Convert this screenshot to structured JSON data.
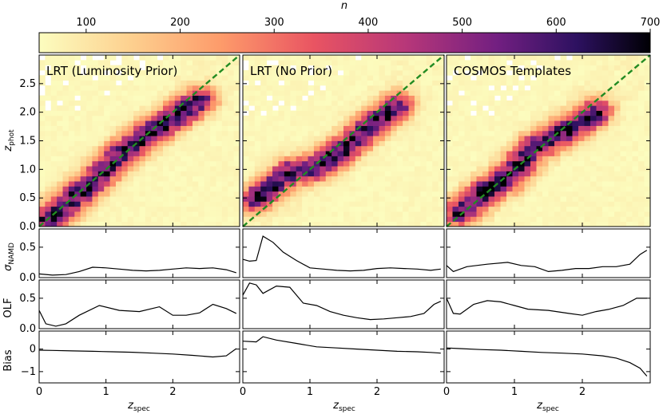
{
  "chart_data": {
    "type": "heatmap",
    "colorbar": {
      "label": "n",
      "min": 50,
      "max": 700,
      "ticks": [
        100,
        200,
        300,
        400,
        500,
        600,
        700
      ],
      "colormap": "magma_r",
      "orientation": "horizontal",
      "placement": "top"
    },
    "xlabel": "z_spec",
    "xlim": [
      0,
      3
    ],
    "xticks": [
      0,
      1,
      2
    ],
    "heatmap_ylabel": "z_phot",
    "heatmap_ylim": [
      0,
      3
    ],
    "heatmap_yticks": [
      0.0,
      0.5,
      1.0,
      1.5,
      2.0,
      2.5
    ],
    "one_to_one_line": {
      "color": "#228b22",
      "style": "dashed"
    },
    "panels": [
      {
        "title": "LRT (Luminosity Prior)",
        "density_ridge": [
          [
            0.1,
            0.1
          ],
          [
            0.4,
            0.38
          ],
          [
            0.8,
            0.78
          ],
          [
            1.2,
            1.25
          ],
          [
            1.6,
            1.6
          ],
          [
            2.0,
            1.9
          ],
          [
            2.4,
            2.2
          ]
        ],
        "sigma_nmad": {
          "x": [
            0.0,
            0.2,
            0.4,
            0.6,
            0.8,
            1.0,
            1.2,
            1.4,
            1.6,
            1.8,
            2.0,
            2.2,
            2.4,
            2.6,
            2.8,
            2.95
          ],
          "y": [
            0.06,
            0.04,
            0.05,
            0.1,
            0.17,
            0.16,
            0.14,
            0.12,
            0.11,
            0.12,
            0.14,
            0.16,
            0.15,
            0.16,
            0.13,
            0.08
          ]
        },
        "olf": {
          "x": [
            0.0,
            0.1,
            0.25,
            0.4,
            0.6,
            0.9,
            1.2,
            1.5,
            1.8,
            2.0,
            2.2,
            2.4,
            2.6,
            2.8,
            2.95
          ],
          "y": [
            0.3,
            0.08,
            0.04,
            0.08,
            0.22,
            0.38,
            0.3,
            0.28,
            0.36,
            0.22,
            0.22,
            0.26,
            0.4,
            0.33,
            0.25
          ]
        },
        "bias": {
          "x": [
            0.0,
            0.2,
            0.5,
            0.8,
            1.1,
            1.4,
            1.7,
            2.0,
            2.3,
            2.6,
            2.8,
            2.95
          ],
          "y": [
            -0.05,
            -0.06,
            -0.08,
            -0.1,
            -0.12,
            -0.14,
            -0.18,
            -0.22,
            -0.28,
            -0.35,
            -0.3,
            0.02
          ]
        }
      },
      {
        "title": "LRT (No Prior)",
        "density_ridge": [
          [
            0.2,
            0.5
          ],
          [
            0.7,
            0.95
          ],
          [
            1.1,
            1.05
          ],
          [
            1.5,
            1.35
          ],
          [
            1.9,
            1.75
          ],
          [
            2.3,
            2.1
          ]
        ],
        "sigma_nmad": {
          "x": [
            0.0,
            0.1,
            0.2,
            0.3,
            0.45,
            0.6,
            0.8,
            1.0,
            1.2,
            1.4,
            1.6,
            1.8,
            2.0,
            2.2,
            2.4,
            2.6,
            2.8,
            2.95
          ],
          "y": [
            0.3,
            0.27,
            0.28,
            0.68,
            0.58,
            0.42,
            0.28,
            0.16,
            0.14,
            0.12,
            0.11,
            0.12,
            0.15,
            0.16,
            0.15,
            0.14,
            0.12,
            0.14
          ]
        },
        "olf": {
          "x": [
            0.0,
            0.1,
            0.2,
            0.3,
            0.5,
            0.7,
            0.9,
            1.1,
            1.3,
            1.5,
            1.7,
            1.9,
            2.1,
            2.3,
            2.5,
            2.7,
            2.85,
            2.95
          ],
          "y": [
            0.55,
            0.75,
            0.72,
            0.58,
            0.7,
            0.68,
            0.42,
            0.38,
            0.28,
            0.22,
            0.18,
            0.15,
            0.16,
            0.18,
            0.2,
            0.25,
            0.4,
            0.45
          ]
        },
        "bias": {
          "x": [
            0.0,
            0.2,
            0.3,
            0.5,
            0.8,
            1.1,
            1.4,
            1.7,
            2.0,
            2.3,
            2.6,
            2.8,
            2.95
          ],
          "y": [
            0.35,
            0.32,
            0.55,
            0.4,
            0.25,
            0.1,
            0.05,
            0.0,
            -0.05,
            -0.1,
            -0.12,
            -0.15,
            -0.18
          ]
        }
      },
      {
        "title": "COSMOS Templates",
        "density_ridge": [
          [
            0.2,
            0.25
          ],
          [
            0.6,
            0.65
          ],
          [
            0.9,
            0.85
          ],
          [
            1.3,
            1.4
          ],
          [
            1.8,
            1.7
          ],
          [
            2.2,
            2.0
          ]
        ],
        "sigma_nmad": {
          "x": [
            0.0,
            0.1,
            0.3,
            0.6,
            0.9,
            1.1,
            1.3,
            1.5,
            1.7,
            1.9,
            2.1,
            2.3,
            2.5,
            2.7,
            2.85,
            2.95
          ],
          "y": [
            0.2,
            0.1,
            0.18,
            0.22,
            0.25,
            0.2,
            0.18,
            0.1,
            0.12,
            0.15,
            0.15,
            0.18,
            0.18,
            0.22,
            0.38,
            0.45
          ]
        },
        "olf": {
          "x": [
            0.0,
            0.1,
            0.2,
            0.4,
            0.6,
            0.8,
            1.0,
            1.2,
            1.5,
            1.8,
            2.0,
            2.2,
            2.4,
            2.6,
            2.8,
            2.95
          ],
          "y": [
            0.5,
            0.25,
            0.24,
            0.4,
            0.46,
            0.44,
            0.38,
            0.32,
            0.3,
            0.25,
            0.22,
            0.28,
            0.32,
            0.38,
            0.5,
            0.5
          ]
        },
        "bias": {
          "x": [
            0.0,
            0.2,
            0.5,
            0.8,
            1.1,
            1.4,
            1.7,
            2.0,
            2.3,
            2.5,
            2.7,
            2.85,
            2.95
          ],
          "y": [
            0.05,
            0.02,
            -0.02,
            -0.05,
            -0.1,
            -0.15,
            -0.18,
            -0.22,
            -0.3,
            -0.4,
            -0.6,
            -0.85,
            -1.2
          ]
        }
      }
    ],
    "stat_rows": [
      {
        "key": "sigma_nmad",
        "label": "σ_NAMD",
        "ylim": [
          0,
          0.8
        ],
        "yticks": [
          0.0,
          0.5
        ]
      },
      {
        "key": "olf",
        "label": "OLF",
        "ylim": [
          0,
          0.8
        ],
        "yticks": [
          0.0,
          0.5
        ]
      },
      {
        "key": "bias",
        "label": "Bias",
        "ylim": [
          -1.5,
          0.8
        ],
        "yticks": [
          0,
          -1
        ]
      }
    ]
  }
}
